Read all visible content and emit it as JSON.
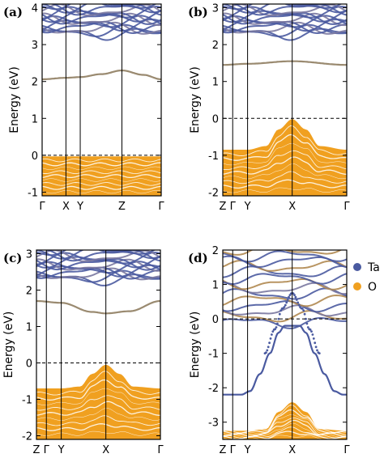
{
  "figure": {
    "legend": [
      {
        "name": "Ta",
        "color": "#4a5aa0"
      },
      {
        "name": "O",
        "color": "#f0a020"
      }
    ]
  },
  "chart_data": [
    {
      "type": "line",
      "panel_label": "(a)",
      "ylabel": "Energy (eV)",
      "ylim": [
        -1.1,
        4.1
      ],
      "yticks": [
        -1,
        0,
        1,
        2,
        3,
        4
      ],
      "kpath": [
        {
          "label": "Γ",
          "pos": 0.0
        },
        {
          "label": "X",
          "pos": 0.2
        },
        {
          "label": "Y",
          "pos": 0.32
        },
        {
          "label": "Z",
          "pos": 0.67
        },
        {
          "label": "Γ",
          "pos": 1.0
        }
      ],
      "fermi_level": 0,
      "valence_band": {
        "color": "#f0a020",
        "bottom": -1.1,
        "top_profile": [
          [
            0,
            -0.03
          ],
          [
            0.2,
            -0.03
          ],
          [
            0.32,
            -0.03
          ],
          [
            0.67,
            -0.03
          ],
          [
            1.0,
            -0.03
          ]
        ]
      },
      "highlight_band": {
        "color": "#9a8a70",
        "points": [
          [
            0,
            2.06
          ],
          [
            0.2,
            2.1
          ],
          [
            0.32,
            2.12
          ],
          [
            0.5,
            2.2
          ],
          [
            0.67,
            2.3
          ],
          [
            0.85,
            2.18
          ],
          [
            1.0,
            2.06
          ]
        ]
      },
      "conduction_bands": {
        "color": "#4a5aa0",
        "bottom": 3.3,
        "top": 4.1
      }
    },
    {
      "type": "line",
      "panel_label": "(b)",
      "ylabel": "Energy (eV)",
      "ylim": [
        -2.1,
        3.1
      ],
      "yticks": [
        -2,
        -1,
        0,
        1,
        2,
        3
      ],
      "kpath": [
        {
          "label": "Z",
          "pos": 0.0
        },
        {
          "label": "Γ",
          "pos": 0.08
        },
        {
          "label": "Y",
          "pos": 0.2
        },
        {
          "label": "X",
          "pos": 0.56
        },
        {
          "label": "Γ",
          "pos": 1.0
        }
      ],
      "fermi_level": 0,
      "valence_band": {
        "color": "#f0a020",
        "bottom": -2.1,
        "top_profile": [
          [
            0,
            -0.85
          ],
          [
            0.2,
            -0.85
          ],
          [
            0.35,
            -0.75
          ],
          [
            0.45,
            -0.3
          ],
          [
            0.56,
            -0.02
          ],
          [
            0.67,
            -0.3
          ],
          [
            0.78,
            -0.75
          ],
          [
            1.0,
            -0.85
          ]
        ]
      },
      "highlight_band": {
        "color": "#9a8a70",
        "points": [
          [
            0,
            1.45
          ],
          [
            0.2,
            1.48
          ],
          [
            0.56,
            1.55
          ],
          [
            1.0,
            1.45
          ]
        ]
      },
      "conduction_bands": {
        "color": "#4a5aa0",
        "bottom": 2.3,
        "top": 3.1
      }
    },
    {
      "type": "line",
      "panel_label": "(c)",
      "ylabel": "Energy (eV)",
      "ylim": [
        -2.1,
        3.1
      ],
      "yticks": [
        -2,
        -1,
        0,
        1,
        2,
        3
      ],
      "kpath": [
        {
          "label": "Z",
          "pos": 0.0
        },
        {
          "label": "Γ",
          "pos": 0.08
        },
        {
          "label": "Y",
          "pos": 0.2
        },
        {
          "label": "X",
          "pos": 0.56
        },
        {
          "label": "Γ",
          "pos": 1.0
        }
      ],
      "fermi_level": 0,
      "valence_band": {
        "color": "#f0a020",
        "bottom": -2.1,
        "top_profile": [
          [
            0,
            -0.7
          ],
          [
            0.2,
            -0.7
          ],
          [
            0.35,
            -0.65
          ],
          [
            0.45,
            -0.3
          ],
          [
            0.56,
            -0.05
          ],
          [
            0.67,
            -0.3
          ],
          [
            0.78,
            -0.65
          ],
          [
            1.0,
            -0.7
          ]
        ]
      },
      "highlight_band": {
        "color": "#9a8a70",
        "points": [
          [
            0,
            1.7
          ],
          [
            0.2,
            1.65
          ],
          [
            0.45,
            1.4
          ],
          [
            0.56,
            1.36
          ],
          [
            0.75,
            1.42
          ],
          [
            1.0,
            1.7
          ]
        ]
      },
      "conduction_bands": {
        "color": "#4a5aa0",
        "bottom": 2.3,
        "top": 3.1
      }
    },
    {
      "type": "line",
      "panel_label": "(d)",
      "ylabel": "Energy (eV)",
      "ylim": [
        -3.5,
        2.0
      ],
      "yticks": [
        -3,
        -2,
        -1,
        0,
        1,
        2
      ],
      "kpath": [
        {
          "label": "Z",
          "pos": 0.0
        },
        {
          "label": "Γ",
          "pos": 0.08
        },
        {
          "label": "Y",
          "pos": 0.2
        },
        {
          "label": "X",
          "pos": 0.56
        },
        {
          "label": "Γ",
          "pos": 1.0
        }
      ],
      "fermi_level": 0,
      "valence_band": {
        "color": "#f0a020",
        "bottom": -3.5,
        "top_profile": [
          [
            0,
            -3.25
          ],
          [
            0.2,
            -3.25
          ],
          [
            0.35,
            -3.2
          ],
          [
            0.45,
            -2.7
          ],
          [
            0.56,
            -2.42
          ],
          [
            0.67,
            -2.7
          ],
          [
            0.78,
            -3.2
          ],
          [
            1.0,
            -3.25
          ]
        ]
      },
      "highlight_band": {
        "color": "#4a5aa0",
        "points": [
          [
            0,
            -2.2
          ],
          [
            0.15,
            -2.2
          ],
          [
            0.22,
            -2.1
          ],
          [
            0.3,
            -1.6
          ],
          [
            0.38,
            -1.0
          ],
          [
            0.45,
            -0.4
          ],
          [
            0.5,
            -0.2
          ],
          [
            0.62,
            -0.2
          ],
          [
            0.67,
            -0.4
          ],
          [
            0.74,
            -1.0
          ],
          [
            0.82,
            -1.6
          ],
          [
            0.9,
            -2.1
          ],
          [
            0.97,
            -2.2
          ],
          [
            1.0,
            -2.2
          ]
        ]
      },
      "dotted_band": {
        "color": "#4a5aa0",
        "points": [
          [
            0.34,
            -1.0
          ],
          [
            0.42,
            -0.3
          ],
          [
            0.48,
            0.3
          ],
          [
            0.56,
            0.75
          ],
          [
            0.64,
            0.3
          ],
          [
            0.7,
            -0.3
          ],
          [
            0.78,
            -1.0
          ]
        ]
      },
      "conduction_bands": {
        "color": "#4a5aa0",
        "bottom": -0.1,
        "top": 2.0
      },
      "mixed_band_color": "#b08850"
    }
  ]
}
